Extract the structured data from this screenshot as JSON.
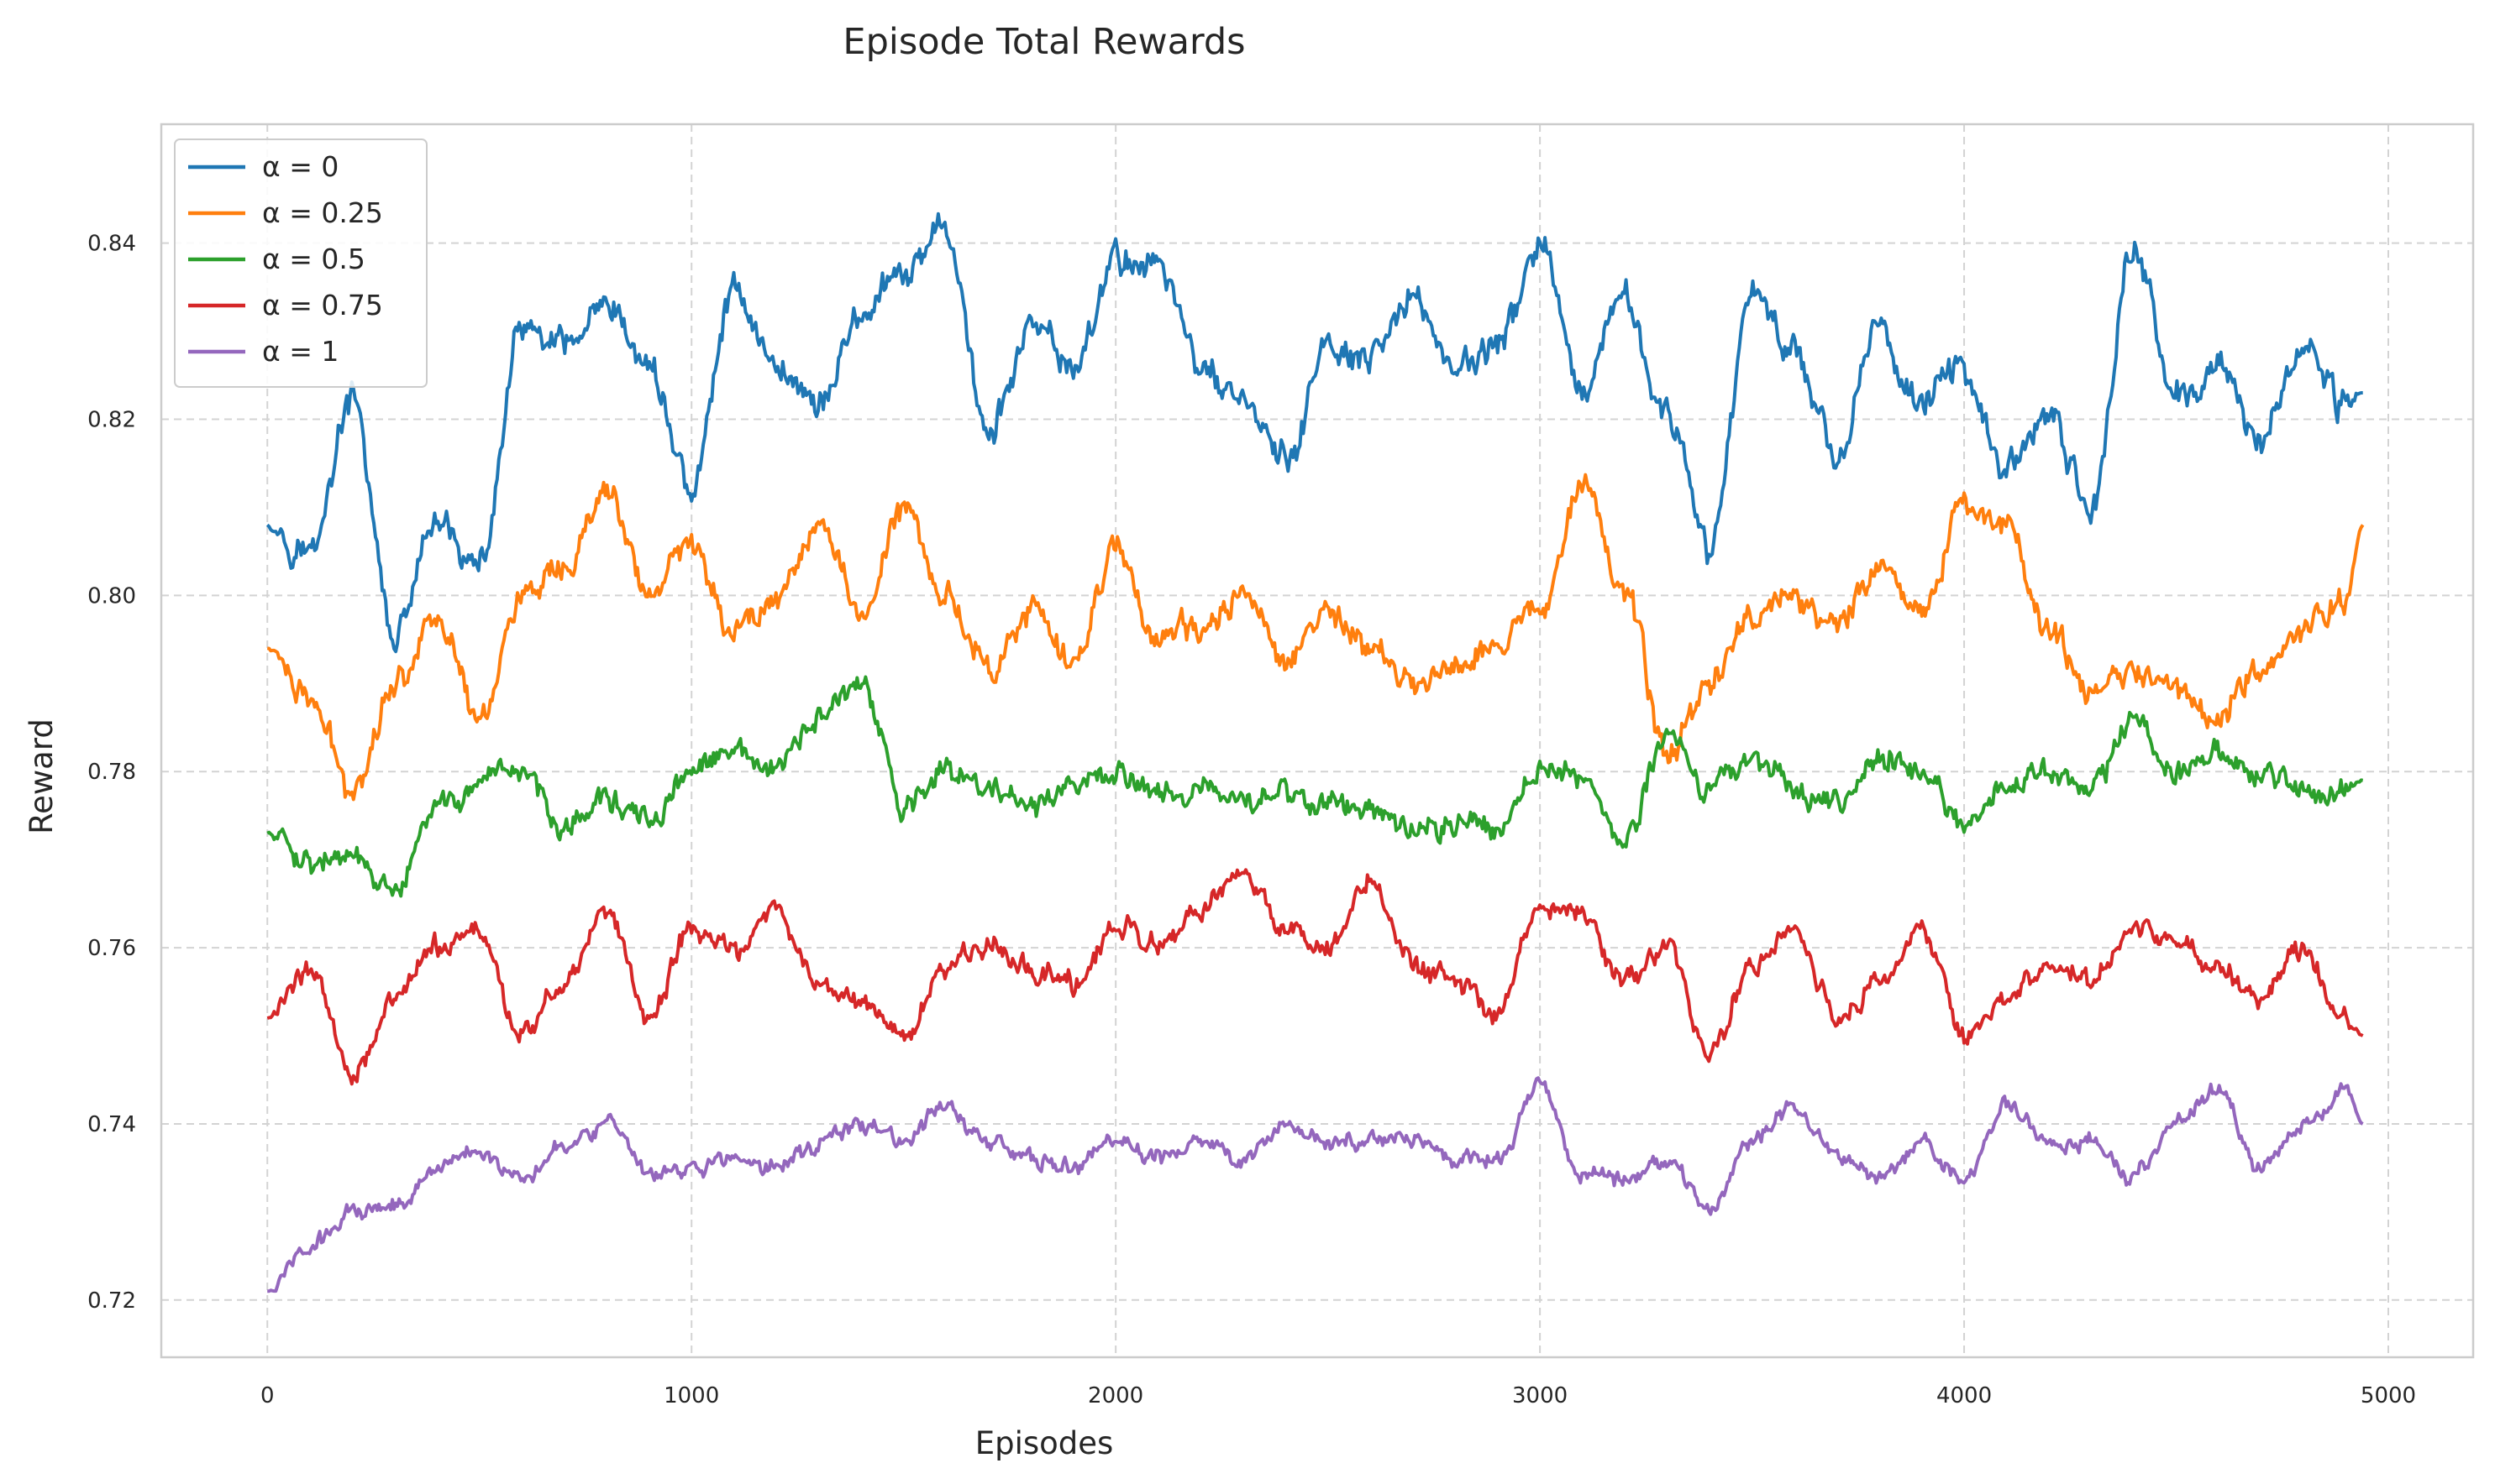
{
  "chart_data": {
    "type": "line",
    "title": "Episode Total Rewards",
    "xlabel": "Episodes",
    "ylabel": "Reward",
    "xlim": [
      -250,
      5200
    ],
    "ylim": [
      0.7135,
      0.8535
    ],
    "xticks": [
      0,
      1000,
      2000,
      3000,
      4000,
      5000
    ],
    "xtick_labels": [
      "0",
      "1000",
      "2000",
      "3000",
      "4000",
      "5000"
    ],
    "yticks": [
      0.72,
      0.74,
      0.76,
      0.78,
      0.8,
      0.82,
      0.84
    ],
    "ytick_labels": [
      "0.72",
      "0.74",
      "0.76",
      "0.78",
      "0.80",
      "0.82",
      "0.84"
    ],
    "grid": true,
    "legend_position": "top-left",
    "x": [
      0,
      100,
      200,
      300,
      400,
      500,
      600,
      700,
      800,
      900,
      1000,
      1100,
      1200,
      1300,
      1400,
      1500,
      1600,
      1700,
      1800,
      1900,
      2000,
      2100,
      2200,
      2300,
      2400,
      2500,
      2600,
      2700,
      2800,
      2900,
      3000,
      3100,
      3200,
      3300,
      3400,
      3500,
      3600,
      3700,
      3800,
      3900,
      4000,
      4100,
      4200,
      4300,
      4400,
      4500,
      4600,
      4700,
      4800,
      4900,
      4940
    ],
    "series": [
      {
        "name": "α = 0",
        "color": "#1f77b4",
        "values": [
          0.808,
          0.805,
          0.822,
          0.795,
          0.808,
          0.803,
          0.83,
          0.828,
          0.832,
          0.826,
          0.812,
          0.835,
          0.826,
          0.822,
          0.832,
          0.836,
          0.842,
          0.818,
          0.83,
          0.826,
          0.838,
          0.838,
          0.826,
          0.822,
          0.815,
          0.828,
          0.826,
          0.834,
          0.826,
          0.828,
          0.84,
          0.822,
          0.834,
          0.82,
          0.805,
          0.835,
          0.828,
          0.816,
          0.83,
          0.822,
          0.826,
          0.814,
          0.82,
          0.81,
          0.84,
          0.822,
          0.826,
          0.818,
          0.828,
          0.822,
          0.823
        ]
      },
      {
        "name": "α = 0.25",
        "color": "#ff7f0e",
        "values": [
          0.794,
          0.788,
          0.778,
          0.79,
          0.798,
          0.786,
          0.8,
          0.802,
          0.812,
          0.8,
          0.806,
          0.796,
          0.8,
          0.808,
          0.798,
          0.81,
          0.8,
          0.792,
          0.798,
          0.792,
          0.806,
          0.795,
          0.796,
          0.8,
          0.793,
          0.798,
          0.794,
          0.79,
          0.792,
          0.795,
          0.798,
          0.814,
          0.8,
          0.782,
          0.79,
          0.798,
          0.8,
          0.796,
          0.804,
          0.798,
          0.81,
          0.808,
          0.796,
          0.788,
          0.792,
          0.79,
          0.786,
          0.792,
          0.796,
          0.8,
          0.808
        ]
      },
      {
        "name": "α = 0.5",
        "color": "#2ca02c",
        "values": [
          0.773,
          0.77,
          0.77,
          0.766,
          0.776,
          0.778,
          0.78,
          0.774,
          0.777,
          0.774,
          0.78,
          0.782,
          0.78,
          0.786,
          0.79,
          0.776,
          0.78,
          0.778,
          0.776,
          0.778,
          0.78,
          0.778,
          0.778,
          0.776,
          0.778,
          0.776,
          0.776,
          0.774,
          0.774,
          0.774,
          0.78,
          0.78,
          0.772,
          0.784,
          0.778,
          0.782,
          0.778,
          0.776,
          0.782,
          0.78,
          0.774,
          0.778,
          0.78,
          0.778,
          0.786,
          0.78,
          0.782,
          0.78,
          0.778,
          0.778,
          0.779
        ]
      },
      {
        "name": "α = 0.75",
        "color": "#d62728",
        "values": [
          0.752,
          0.758,
          0.746,
          0.754,
          0.76,
          0.762,
          0.75,
          0.756,
          0.764,
          0.752,
          0.762,
          0.76,
          0.764,
          0.756,
          0.754,
          0.75,
          0.758,
          0.76,
          0.758,
          0.756,
          0.762,
          0.76,
          0.764,
          0.768,
          0.762,
          0.76,
          0.768,
          0.758,
          0.756,
          0.752,
          0.764,
          0.764,
          0.756,
          0.76,
          0.748,
          0.758,
          0.762,
          0.752,
          0.756,
          0.762,
          0.75,
          0.754,
          0.758,
          0.756,
          0.762,
          0.76,
          0.758,
          0.754,
          0.76,
          0.752,
          0.75
        ]
      },
      {
        "name": "α = 1",
        "color": "#9467bd",
        "values": [
          0.721,
          0.726,
          0.73,
          0.731,
          0.735,
          0.737,
          0.734,
          0.738,
          0.74,
          0.734,
          0.735,
          0.736,
          0.735,
          0.738,
          0.74,
          0.738,
          0.742,
          0.738,
          0.736,
          0.735,
          0.738,
          0.736,
          0.738,
          0.736,
          0.74,
          0.738,
          0.738,
          0.738,
          0.736,
          0.736,
          0.744,
          0.734,
          0.734,
          0.736,
          0.73,
          0.738,
          0.742,
          0.736,
          0.734,
          0.738,
          0.734,
          0.742,
          0.738,
          0.738,
          0.734,
          0.74,
          0.744,
          0.735,
          0.74,
          0.744,
          0.74
        ]
      }
    ]
  }
}
